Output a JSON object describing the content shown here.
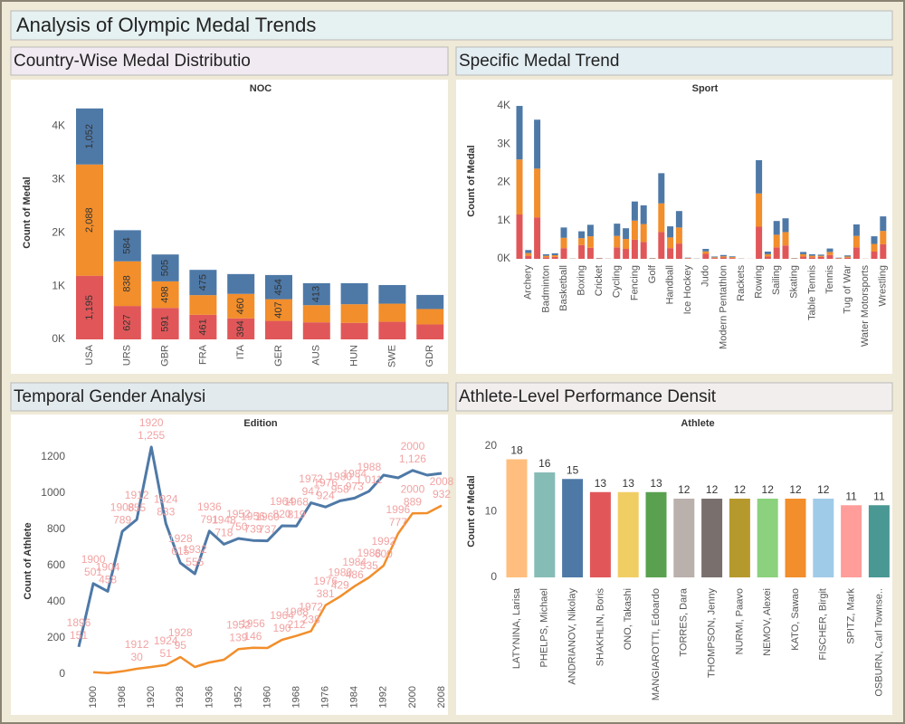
{
  "title": "Analysis of Olympic Medal Trends",
  "chart_data": [
    {
      "type": "bar",
      "stacked": true,
      "title": "Country-Wise Medal Distributio",
      "header": "NOC",
      "ylabel": "Count of Medal",
      "categories": [
        "USA",
        "URS",
        "GBR",
        "FRA",
        "ITA",
        "GER",
        "AUS",
        "HUN",
        "SWE",
        "GDR"
      ],
      "series": [
        {
          "color": "#e15759",
          "values": [
            1195,
            627,
            591,
            461,
            394,
            347,
            320,
            310,
            330,
            280
          ],
          "value_labels": [
            "1,195",
            "627",
            "591",
            "461",
            "394",
            null,
            null,
            null,
            null,
            null
          ]
        },
        {
          "color": "#f28e2b",
          "values": [
            2088,
            838,
            498,
            369,
            460,
            407,
            322,
            350,
            340,
            290
          ],
          "value_labels": [
            "2,088",
            "838",
            "498",
            null,
            "460",
            "407",
            null,
            null,
            null,
            null
          ]
        },
        {
          "color": "#4e79a7",
          "values": [
            1052,
            584,
            505,
            475,
            372,
            454,
            413,
            395,
            350,
            264
          ],
          "value_labels": [
            "1,052",
            "584",
            "505",
            "475",
            null,
            "454",
            "413",
            null,
            null,
            null
          ]
        }
      ],
      "ylim": [
        0,
        4400
      ],
      "yticks": [
        {
          "value": 0,
          "label": "0K"
        },
        {
          "value": 1000,
          "label": "1K"
        },
        {
          "value": 2000,
          "label": "2K"
        },
        {
          "value": 3000,
          "label": "3K"
        },
        {
          "value": 4000,
          "label": "4K"
        }
      ]
    },
    {
      "type": "bar",
      "stacked": true,
      "title": "Specific Medal Trend",
      "header": "Sport",
      "ylabel": "Count of Medal",
      "categories": [
        null,
        "Archery",
        null,
        "Badminton",
        null,
        "Basketball",
        null,
        "Boxing",
        null,
        "Cricket",
        null,
        "Cycling",
        null,
        "Fencing",
        null,
        "Golf",
        null,
        "Handball",
        null,
        "Ice Hockey",
        null,
        "Judo",
        null,
        "Modern Pentathlon",
        null,
        "Rackets",
        null,
        "Rowing",
        null,
        "Sailing",
        null,
        "Skating",
        null,
        "Table Tennis",
        null,
        "Tennis",
        null,
        "Tug of War",
        null,
        "Water Motorsports",
        null,
        "Wrestling"
      ],
      "series": [
        {
          "color": "#e15759",
          "values": [
            1160,
            80,
            1085,
            40,
            50,
            280,
            4,
            360,
            290,
            8,
            3,
            300,
            260,
            500,
            440,
            6,
            700,
            280,
            400,
            10,
            3,
            130,
            20,
            35,
            20,
            4,
            1,
            840,
            60,
            300,
            350,
            6,
            60,
            40,
            50,
            100,
            10,
            30,
            300,
            2,
            190,
            380
          ]
        },
        {
          "color": "#f28e2b",
          "values": [
            1440,
            70,
            1275,
            40,
            45,
            270,
            3,
            180,
            300,
            8,
            2,
            300,
            260,
            500,
            470,
            6,
            750,
            280,
            420,
            10,
            1,
            65,
            20,
            30,
            25,
            3,
            1,
            870,
            60,
            330,
            350,
            7,
            60,
            40,
            30,
            80,
            10,
            30,
            300,
            2,
            200,
            350
          ]
        },
        {
          "color": "#4e79a7",
          "values": [
            1400,
            80,
            1280,
            40,
            50,
            270,
            3,
            180,
            300,
            8,
            3,
            320,
            280,
            500,
            490,
            8,
            790,
            290,
            430,
            10,
            4,
            65,
            20,
            35,
            20,
            3,
            1,
            870,
            70,
            360,
            360,
            7,
            60,
            40,
            30,
            90,
            10,
            30,
            300,
            1,
            200,
            380
          ]
        }
      ],
      "ylim": [
        0,
        4150
      ],
      "yticks": [
        {
          "value": 0,
          "label": "0K"
        },
        {
          "value": 1000,
          "label": "1K"
        },
        {
          "value": 2000,
          "label": "2K"
        },
        {
          "value": 3000,
          "label": "3K"
        },
        {
          "value": 4000,
          "label": "4K"
        }
      ]
    },
    {
      "type": "line",
      "title": "Temporal Gender Analysi",
      "header": "Edition",
      "ylabel": "Count of Athlete",
      "categories": [
        "1896",
        "1900",
        "1904",
        "1908",
        "1912",
        "1920",
        "1924",
        "1928",
        "1932",
        "1936",
        "1948",
        "1952",
        "1956",
        "1960",
        "1964",
        "1968",
        "1972",
        "1976",
        "1980",
        "1984",
        "1988",
        "1992",
        "1996",
        "2000",
        "2004",
        "2008"
      ],
      "series": [
        {
          "color": "#4e79a7",
          "values": [
            151,
            501,
            458,
            789,
            855,
            1255,
            833,
            615,
            555,
            791,
            718,
            750,
            739,
            737,
            820,
            819,
            947,
            924,
            958,
            973,
            1011,
            1100,
            1085,
            1126,
            1100,
            1110
          ],
          "value_labels": [
            "151",
            "501",
            "458",
            "789",
            "855",
            "1,255",
            "833",
            "615",
            "555",
            "791",
            "718",
            "750",
            "739",
            "737",
            "820",
            "819",
            "947",
            "924",
            "958",
            "973",
            "1,011",
            null,
            null,
            "1,126",
            null,
            null
          ]
        },
        {
          "color": "#f28e2b",
          "values": [
            null,
            11,
            6,
            16,
            30,
            40,
            51,
            95,
            40,
            65,
            80,
            139,
            146,
            145,
            190,
            212,
            238,
            381,
            429,
            486,
            535,
            600,
            777,
            889,
            890,
            932
          ],
          "value_labels": [
            null,
            null,
            null,
            null,
            "30",
            null,
            "51",
            "95",
            null,
            null,
            null,
            "139",
            "146",
            null,
            "190",
            "212",
            "238",
            "381",
            "429",
            "486",
            "535",
            "600",
            "777",
            "889",
            null,
            "932"
          ]
        }
      ],
      "label_color": "#f2a3a3",
      "ylim": [
        -20,
        1300
      ],
      "yticks": [
        0,
        200,
        400,
        600,
        800,
        1000,
        1200
      ]
    },
    {
      "type": "bar",
      "title": "Athlete-Level Performance Densit",
      "header": "Athlete",
      "ylabel": "Count of Medal",
      "categories": [
        "LATYNINA, Larisa",
        "PHELPS, Michael",
        "ANDRIANOV, Nikolay",
        "SHAKHLIN, Boris",
        "ONO, Takashi",
        "MANGIAROTTI, Edoardo",
        "TORRES, Dara",
        "THOMPSON, Jenny",
        "NURMI, Paavo",
        "NEMOV, Alexei",
        "KATO, Sawao",
        "FISCHER, Birgit",
        "SPITZ, Mark",
        "OSBURN, Carl Townse.."
      ],
      "values": [
        18,
        16,
        15,
        13,
        13,
        13,
        12,
        12,
        12,
        12,
        12,
        12,
        11,
        11
      ],
      "colors": [
        "#ffbe7d",
        "#86bcb6",
        "#4e79a7",
        "#e15759",
        "#f1ce63",
        "#59a14f",
        "#bab0ac",
        "#79706e",
        "#b6992d",
        "#8cd17d",
        "#f28e2b",
        "#a0cbe8",
        "#ff9d9a",
        "#499894"
      ],
      "ylim": [
        0,
        21
      ],
      "yticks": [
        0,
        10,
        20
      ]
    }
  ]
}
